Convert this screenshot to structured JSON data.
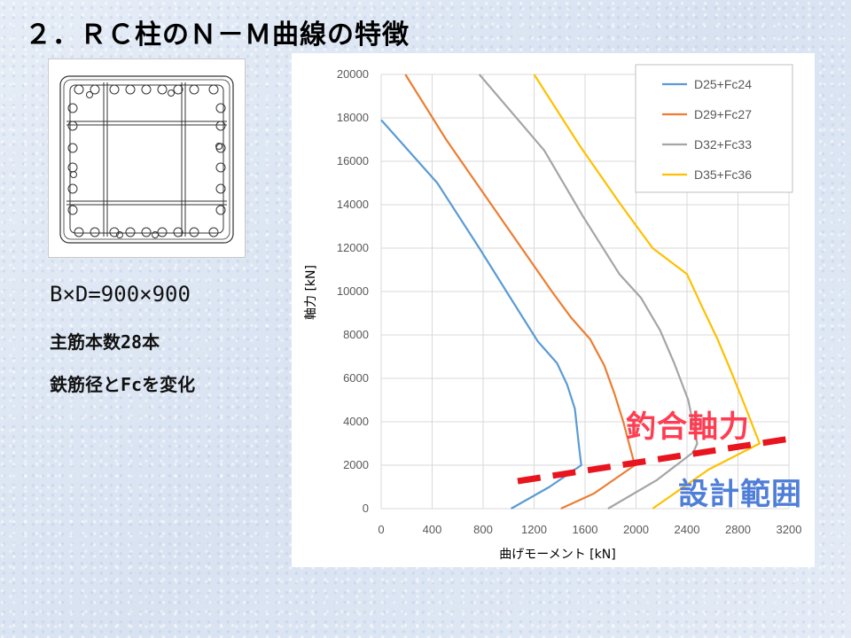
{
  "title": "２．ＲＣ柱のＮ－Ｍ曲線の特徴",
  "specs": {
    "dims": "B×D=900×900",
    "bars": "主筋本数28本",
    "vary": "鉄筋径とFcを変化"
  },
  "annotations": {
    "balance_axial": "釣合軸力",
    "design_range": "設計範囲"
  },
  "colors": {
    "accent_red": "#ff3d52",
    "accent_blue": "#4f7ed8",
    "dashed_line": "#e8141e"
  },
  "chart_data": {
    "type": "line",
    "xlabel": "曲げモーメント [kN]",
    "ylabel": "軸力 [kN]",
    "xlim": [
      0,
      3200
    ],
    "ylim": [
      0,
      20000
    ],
    "x_ticks": [
      0,
      400,
      800,
      1200,
      1600,
      2000,
      2400,
      2800,
      3200
    ],
    "y_ticks": [
      0,
      2000,
      4000,
      6000,
      8000,
      10000,
      12000,
      14000,
      16000,
      18000,
      20000
    ],
    "grid": true,
    "legend_position": "top-right",
    "series": [
      {
        "name": "D25+Fc24",
        "color": "#5b9bd5",
        "points": [
          [
            1020,
            0
          ],
          [
            1320,
            1000
          ],
          [
            1570,
            2000
          ],
          [
            1550,
            3000
          ],
          [
            1520,
            4600
          ],
          [
            1460,
            5700
          ],
          [
            1380,
            6700
          ],
          [
            1230,
            7700
          ],
          [
            1090,
            9000
          ],
          [
            770,
            12000
          ],
          [
            440,
            15000
          ],
          [
            0,
            17900
          ]
        ]
      },
      {
        "name": "D29+Fc27",
        "color": "#ed7d31",
        "points": [
          [
            1410,
            0
          ],
          [
            1670,
            700
          ],
          [
            1990,
            2000
          ],
          [
            1900,
            4000
          ],
          [
            1830,
            5300
          ],
          [
            1750,
            6600
          ],
          [
            1640,
            7800
          ],
          [
            1490,
            8800
          ],
          [
            1340,
            10000
          ],
          [
            900,
            13700
          ],
          [
            510,
            17000
          ],
          [
            190,
            20000
          ]
        ]
      },
      {
        "name": "D32+Fc33",
        "color": "#a5a5a5",
        "points": [
          [
            1780,
            0
          ],
          [
            2160,
            1300
          ],
          [
            2450,
            2600
          ],
          [
            2480,
            3000
          ],
          [
            2410,
            5000
          ],
          [
            2300,
            6700
          ],
          [
            2190,
            8200
          ],
          [
            2040,
            9700
          ],
          [
            1870,
            10800
          ],
          [
            1580,
            13500
          ],
          [
            1280,
            16500
          ],
          [
            770,
            20000
          ]
        ]
      },
      {
        "name": "D35+Fc36",
        "color": "#ffc000",
        "points": [
          [
            2130,
            0
          ],
          [
            2570,
            1800
          ],
          [
            2970,
            3000
          ],
          [
            2850,
            4800
          ],
          [
            2740,
            6400
          ],
          [
            2640,
            7800
          ],
          [
            2510,
            9400
          ],
          [
            2400,
            10800
          ],
          [
            2130,
            12000
          ],
          [
            1880,
            14000
          ],
          [
            1560,
            16700
          ],
          [
            1200,
            20000
          ]
        ]
      }
    ]
  }
}
